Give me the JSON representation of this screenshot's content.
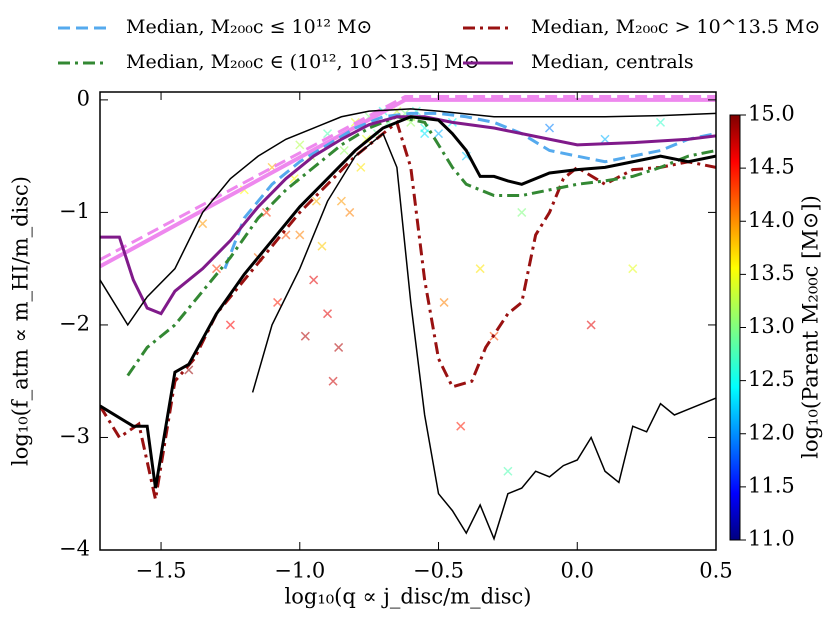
{
  "chart_data": {
    "type": "line",
    "xlabel": "log₁₀(q ∝ j_disc/m_disc)",
    "ylabel": "log₁₀(f_atm ∝ m_HI/m_disc)",
    "xlim": [
      -1.72,
      0.5
    ],
    "ylim": [
      -4,
      0.07
    ],
    "xticks": [
      {
        "value": -1.5,
        "label": "−1.5"
      },
      {
        "value": -1.0,
        "label": "−1.0"
      },
      {
        "value": -0.5,
        "label": "−0.5"
      },
      {
        "value": 0.0,
        "label": "0.0"
      },
      0.5
    ],
    "yticks": [
      {
        "value": 0,
        "label": "0"
      },
      {
        "value": -1,
        "label": "−1"
      },
      {
        "value": -2,
        "label": "−2"
      },
      {
        "value": -3,
        "label": "−3"
      },
      {
        "value": -4,
        "label": "−4"
      }
    ],
    "legend": "top",
    "series": [
      {
        "color": "#ee88ee",
        "dash": "solid",
        "width": 4,
        "x": [
          -1.72,
          -0.62,
          0.5
        ],
        "values": [
          -1.48,
          0,
          0
        ]
      },
      {
        "color": "#ee88ee",
        "dash": "dashed",
        "width": 3,
        "x": [
          -1.72,
          -0.62,
          0.5
        ],
        "values": [
          -1.42,
          0.03,
          0.03
        ]
      },
      {
        "name": "Median, M₂₀₀c ≤ 10¹² M⊙",
        "color": "#55aaee",
        "dash": "dashed",
        "width": 3,
        "x": [
          -1.27,
          -1.2,
          -1.1,
          -1.0,
          -0.9,
          -0.8,
          -0.7,
          -0.6,
          -0.5,
          -0.4,
          -0.3,
          -0.2,
          -0.1,
          0.0,
          0.1,
          0.2,
          0.3,
          0.4,
          0.5
        ],
        "values": [
          -1.5,
          -1.05,
          -0.75,
          -0.55,
          -0.4,
          -0.25,
          -0.15,
          -0.12,
          -0.12,
          -0.15,
          -0.2,
          -0.3,
          -0.45,
          -0.5,
          -0.55,
          -0.5,
          -0.45,
          -0.35,
          -0.3
        ]
      },
      {
        "name": "Median, M₂₀₀c > 10^13.5 M⊙",
        "color": "#991111",
        "dash": "dashdot",
        "width": 3,
        "x": [
          -1.72,
          -1.65,
          -1.58,
          -1.52,
          -1.45,
          -1.38,
          -1.3,
          -1.2,
          -1.1,
          -1.0,
          -0.9,
          -0.8,
          -0.7,
          -0.65,
          -0.6,
          -0.55,
          -0.5,
          -0.45,
          -0.38,
          -0.33,
          -0.25,
          -0.2,
          -0.15,
          -0.1,
          -0.05,
          0.0,
          0.1,
          0.2,
          0.3,
          0.4,
          0.5
        ],
        "values": [
          -2.72,
          -3.0,
          -2.88,
          -3.55,
          -2.5,
          -2.3,
          -1.9,
          -1.6,
          -1.3,
          -1.0,
          -0.75,
          -0.5,
          -0.3,
          -0.2,
          -0.6,
          -1.6,
          -2.3,
          -2.55,
          -2.5,
          -2.2,
          -1.9,
          -1.8,
          -1.2,
          -1.0,
          -0.7,
          -0.6,
          -0.75,
          -0.62,
          -0.6,
          -0.55,
          -0.6
        ]
      },
      {
        "name": "Median, M₂₀₀c ∈ (10¹², 10^13.5] M⊙",
        "color": "#338833",
        "dash": "dashdot",
        "width": 3,
        "x": [
          -1.62,
          -1.55,
          -1.45,
          -1.35,
          -1.25,
          -1.15,
          -1.05,
          -0.95,
          -0.85,
          -0.75,
          -0.65,
          -0.55,
          -0.5,
          -0.45,
          -0.4,
          -0.3,
          -0.2,
          -0.1,
          0.0,
          0.1,
          0.2,
          0.3,
          0.4,
          0.5
        ],
        "values": [
          -2.45,
          -2.2,
          -2.0,
          -1.7,
          -1.4,
          -1.05,
          -0.8,
          -0.6,
          -0.4,
          -0.25,
          -0.15,
          -0.2,
          -0.4,
          -0.6,
          -0.75,
          -0.85,
          -0.85,
          -0.8,
          -0.75,
          -0.72,
          -0.68,
          -0.6,
          -0.5,
          -0.45
        ]
      },
      {
        "name": "Median, centrals",
        "color": "#801a8a",
        "dash": "solid",
        "width": 3,
        "x": [
          -1.72,
          -1.65,
          -1.6,
          -1.55,
          -1.5,
          -1.45,
          -1.35,
          -1.25,
          -1.15,
          -1.05,
          -0.95,
          -0.85,
          -0.75,
          -0.65,
          -0.55,
          -0.45,
          -0.3,
          -0.2,
          -0.1,
          0.0,
          0.2,
          0.4,
          0.5
        ],
        "values": [
          -1.22,
          -1.22,
          -1.6,
          -1.85,
          -1.9,
          -1.7,
          -1.5,
          -1.25,
          -0.95,
          -0.7,
          -0.5,
          -0.35,
          -0.22,
          -0.15,
          -0.15,
          -0.2,
          -0.25,
          -0.3,
          -0.35,
          -0.4,
          -0.38,
          -0.35,
          -0.32
        ]
      },
      {
        "color": "#000000",
        "dash": "solid",
        "width": 3,
        "x": [
          -1.72,
          -1.6,
          -1.55,
          -1.52,
          -1.45,
          -1.4,
          -1.3,
          -1.2,
          -1.1,
          -1.0,
          -0.9,
          -0.8,
          -0.7,
          -0.6,
          -0.5,
          -0.45,
          -0.4,
          -0.35,
          -0.3,
          -0.25,
          -0.2,
          -0.1,
          0.0,
          0.1,
          0.2,
          0.3,
          0.4,
          0.5
        ],
        "values": [
          -2.72,
          -2.9,
          -2.9,
          -3.45,
          -2.42,
          -2.35,
          -1.9,
          -1.55,
          -1.25,
          -0.95,
          -0.7,
          -0.45,
          -0.25,
          -0.15,
          -0.18,
          -0.3,
          -0.45,
          -0.68,
          -0.68,
          -0.72,
          -0.75,
          -0.65,
          -0.62,
          -0.6,
          -0.55,
          -0.5,
          -0.55,
          -0.5
        ]
      },
      {
        "color": "#000000",
        "dash": "solid",
        "width": 1.5,
        "x": [
          -1.72,
          -1.62,
          -1.55,
          -1.45,
          -1.35,
          -1.25,
          -1.15,
          -1.05,
          -0.95,
          -0.85,
          -0.75,
          -0.6,
          -0.5,
          -0.3,
          -0.1,
          0.1,
          0.3,
          0.5
        ],
        "values": [
          -1.6,
          -2.0,
          -1.75,
          -1.5,
          -1.0,
          -0.7,
          -0.5,
          -0.35,
          -0.25,
          -0.15,
          -0.1,
          -0.08,
          -0.1,
          -0.15,
          -0.15,
          -0.15,
          -0.14,
          -0.12
        ]
      },
      {
        "color": "#000000",
        "dash": "solid",
        "width": 1.5,
        "x": [
          -1.17,
          -1.1,
          -1.0,
          -0.9,
          -0.8,
          -0.7,
          -0.65,
          -0.6,
          -0.55,
          -0.5,
          -0.45,
          -0.4,
          -0.35,
          -0.3,
          -0.25,
          -0.2,
          -0.15,
          -0.1,
          -0.05,
          0.0,
          0.05,
          0.1,
          0.15,
          0.2,
          0.25,
          0.3,
          0.35,
          0.4,
          0.5
        ],
        "values": [
          -2.6,
          -2.0,
          -1.5,
          -0.9,
          -0.5,
          -0.3,
          -0.6,
          -1.8,
          -2.8,
          -3.5,
          -3.65,
          -3.85,
          -3.6,
          -3.9,
          -3.5,
          -3.45,
          -3.3,
          -3.35,
          -3.25,
          -3.2,
          -3.0,
          -3.3,
          -3.4,
          -2.9,
          -2.95,
          -2.7,
          -2.8,
          -2.75,
          -2.65
        ]
      }
    ],
    "scatter": {
      "x": [
        -1.2,
        -1.1,
        -1.05,
        -1.0,
        -0.95,
        -0.9,
        -0.85,
        -0.8,
        -0.75,
        -0.7,
        -0.65,
        -0.6,
        -0.55,
        -1.15,
        -1.08,
        -0.98,
        -0.92,
        -0.88,
        -0.82,
        -0.78,
        -0.72,
        -1.3,
        -1.25,
        -1.4,
        -1.35,
        -1.02,
        -0.96,
        -0.9,
        -0.86,
        -0.5,
        -0.45,
        -0.4,
        -0.35,
        -0.3,
        -0.2,
        -0.1,
        0.1,
        0.2,
        0.3,
        -0.6,
        -0.55,
        -0.48,
        -0.42,
        -0.25,
        0.05,
        -1.12,
        -1.0,
        -0.94,
        -0.84,
        -0.76,
        -0.68,
        -0.62,
        -0.58
      ],
      "y": [
        -0.8,
        -0.6,
        -1.2,
        -0.4,
        -1.6,
        -0.3,
        -0.9,
        -0.2,
        -0.15,
        -0.1,
        -0.1,
        -0.2,
        -0.3,
        -1.4,
        -1.8,
        -2.1,
        -1.3,
        -2.5,
        -1.0,
        -0.6,
        -0.3,
        -1.5,
        -2.0,
        -2.4,
        -1.1,
        -0.7,
        -0.5,
        -1.9,
        -2.2,
        -0.3,
        -0.2,
        -0.5,
        -1.5,
        -2.1,
        -1.0,
        -0.25,
        -0.35,
        -1.5,
        -0.2,
        -0.15,
        -0.25,
        -1.8,
        -2.9,
        -3.3,
        -2.0,
        -1.0,
        -1.2,
        -0.9,
        -0.45,
        -0.35,
        -0.2,
        -0.12,
        -0.1
      ],
      "c": [
        13.5,
        13.8,
        14.2,
        13.2,
        14.6,
        12.8,
        13.9,
        13.4,
        13.0,
        12.6,
        13.3,
        13.1,
        12.4,
        14.1,
        14.4,
        14.8,
        13.7,
        14.7,
        14.0,
        13.6,
        12.9,
        14.3,
        14.5,
        14.9,
        13.9,
        13.5,
        13.2,
        14.6,
        14.8,
        12.2,
        12.5,
        12.3,
        13.6,
        14.2,
        13.0,
        12.0,
        12.2,
        13.4,
        12.7,
        13.2,
        12.6,
        14.0,
        14.4,
        12.8,
        14.6,
        14.3,
        14.0,
        13.8,
        13.1,
        13.4,
        12.9,
        13.0,
        12.7
      ]
    },
    "colorbar": {
      "label": "log₁₀(Parent M₂₀₀c [M⊙])",
      "lim": [
        11.0,
        15.0
      ],
      "ticks": [
        {
          "value": 11.0,
          "label": "11.0"
        },
        11.5,
        {
          "value": 12.0,
          "label": "12.0"
        },
        12.5,
        {
          "value": 13.0,
          "label": "13.0"
        },
        13.5,
        {
          "value": 14.0,
          "label": "14.0"
        },
        14.5,
        {
          "value": 15.0,
          "label": "15.0"
        }
      ]
    }
  }
}
